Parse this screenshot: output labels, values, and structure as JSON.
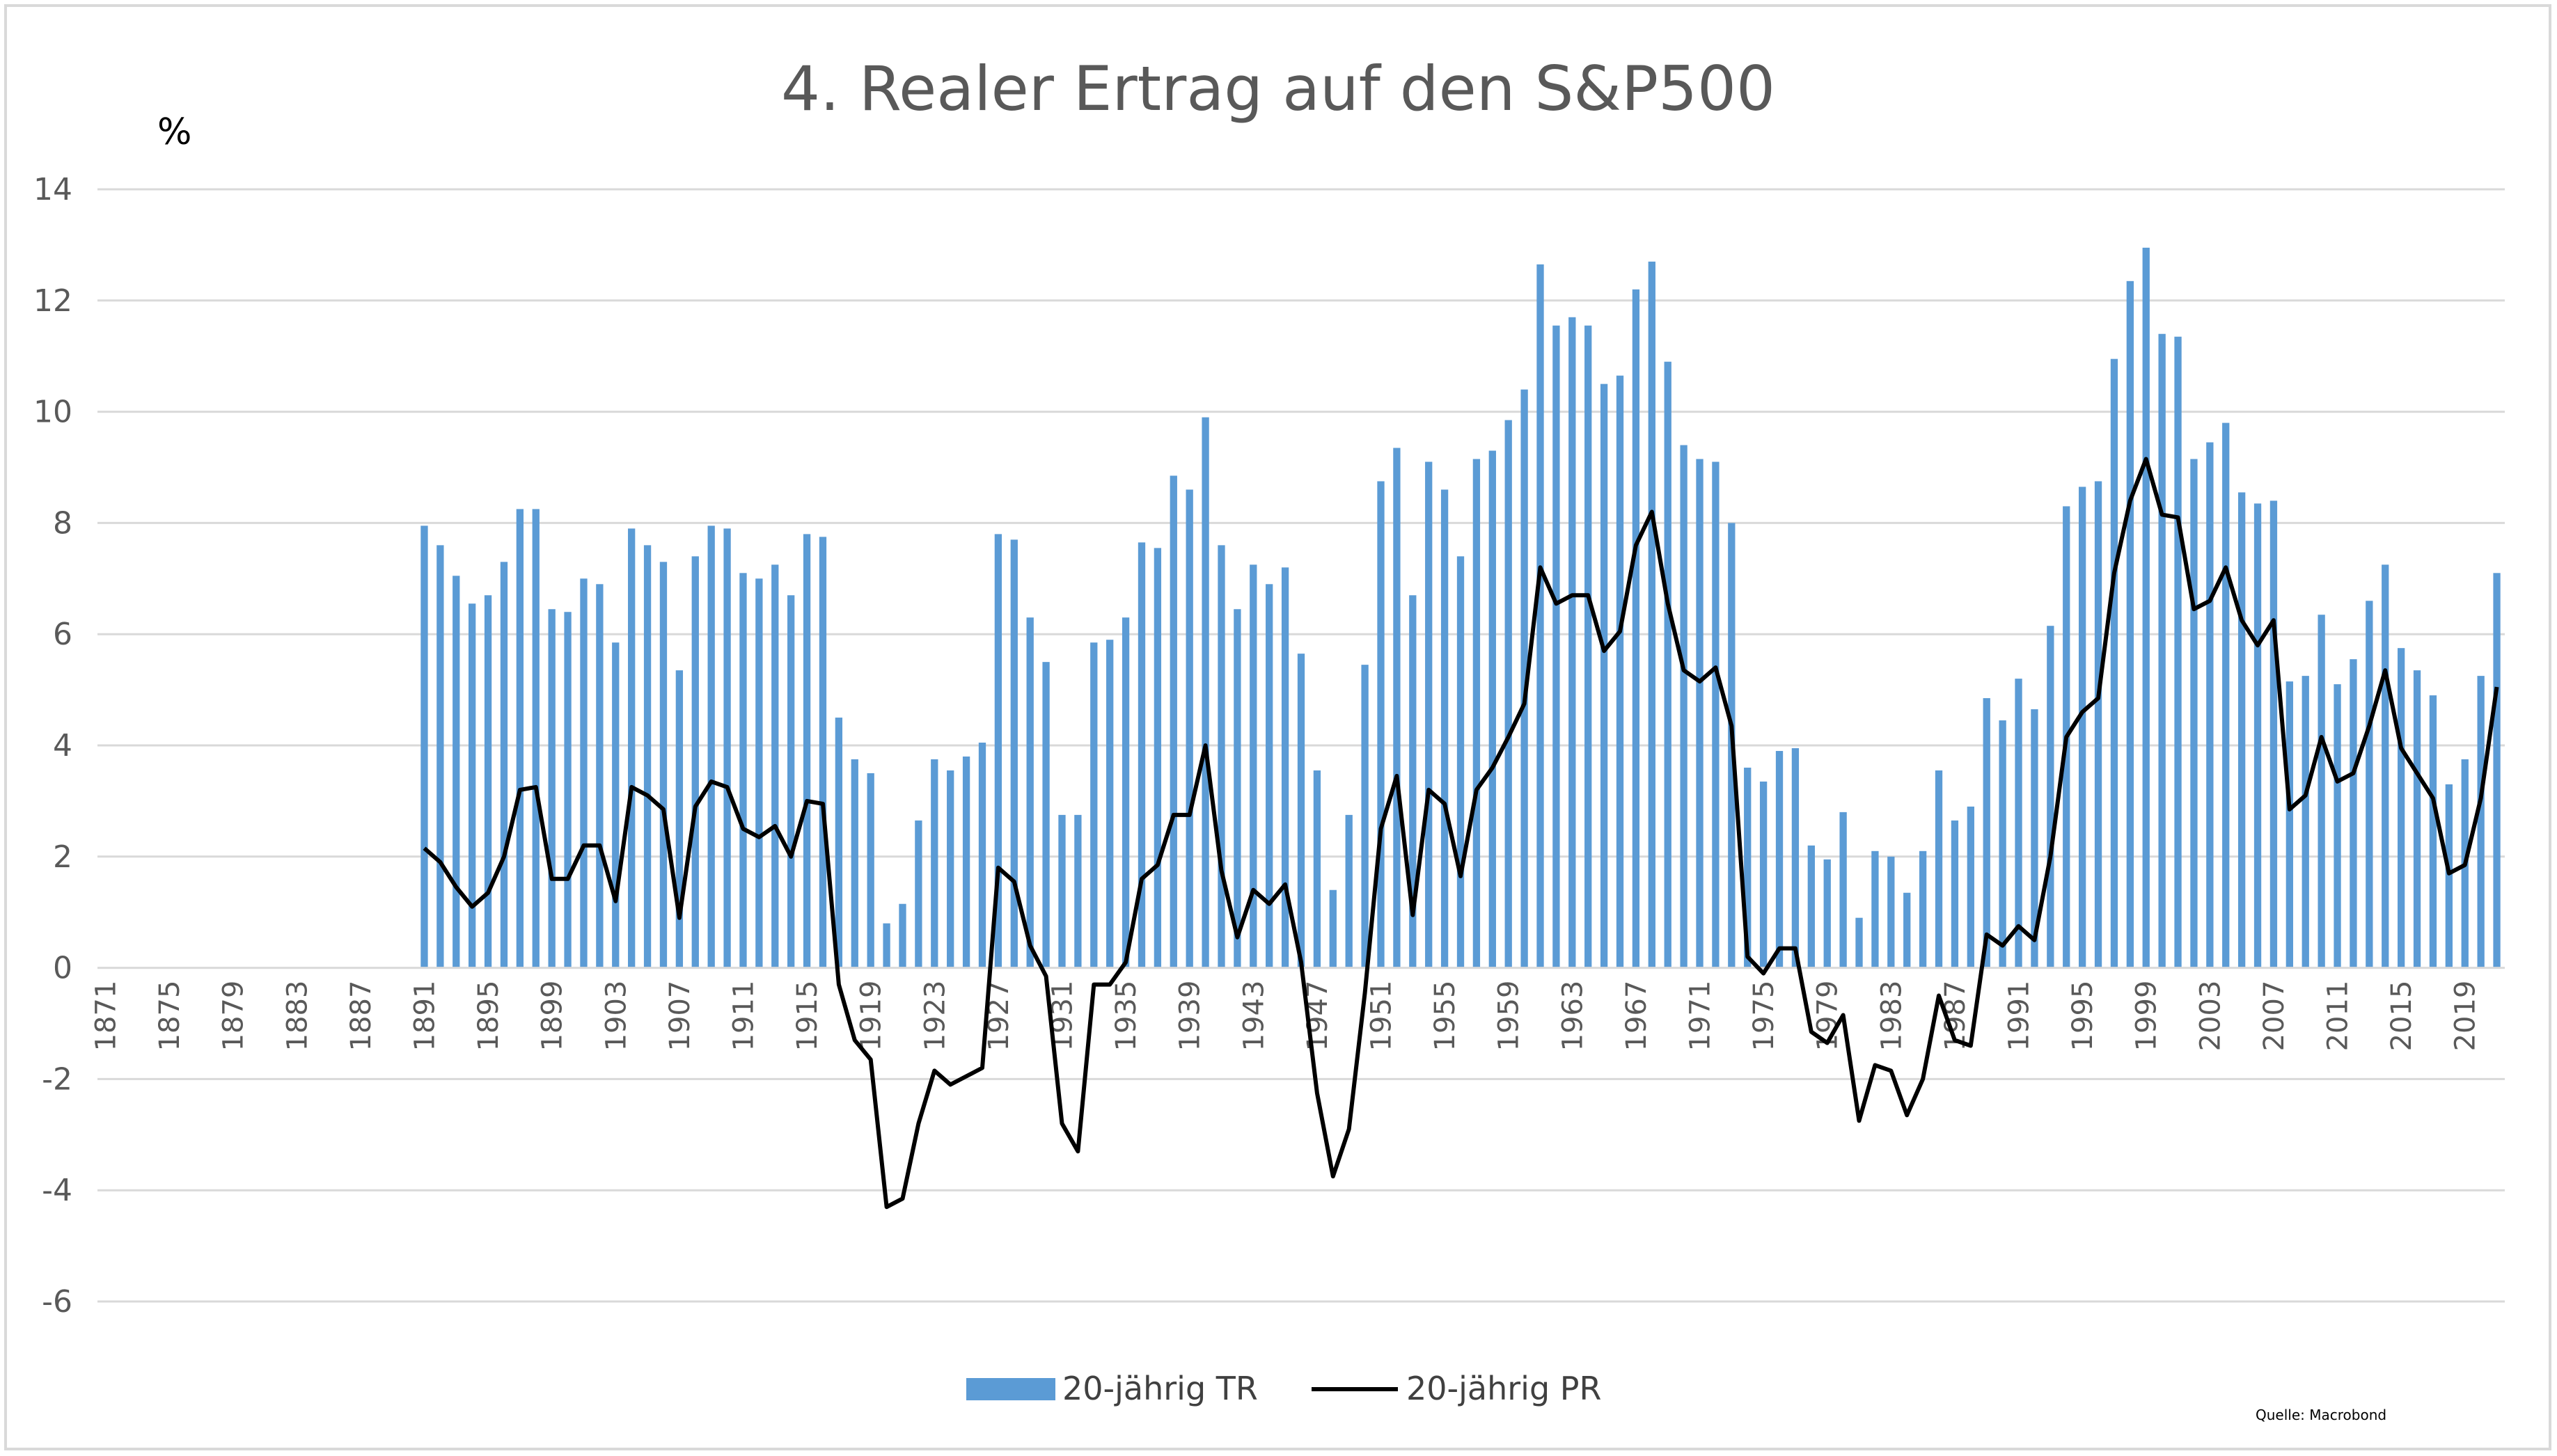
{
  "chart_data": {
    "type": "bar",
    "title": "4. Realer Ertrag auf den S&P500",
    "ylabel": "%",
    "xlabel": "",
    "ylim": [
      -6,
      14
    ],
    "yticks": [
      14,
      12,
      10,
      8,
      6,
      4,
      2,
      0,
      -2,
      -4,
      -6
    ],
    "grid": true,
    "legend_position": "bottom-center",
    "source": "Quelle: Macrobond",
    "x_start": 1871,
    "x_end": 2021,
    "x_tick_labels": [
      "1871",
      "1875",
      "1879",
      "1883",
      "1887",
      "1891",
      "1895",
      "1899",
      "1903",
      "1907",
      "1911",
      "1915",
      "1919",
      "1923",
      "1927",
      "1931",
      "1935",
      "1939",
      "1943",
      "1947",
      "1951",
      "1955",
      "1959",
      "1963",
      "1967",
      "1971",
      "1975",
      "1979",
      "1983",
      "1987",
      "1991",
      "1995",
      "1999",
      "2003",
      "2007",
      "2011",
      "2015",
      "2019"
    ],
    "series": [
      {
        "name": "20-jährig TR",
        "kind": "bar",
        "color": "#5b9bd5",
        "start_year": 1891,
        "values": [
          7.95,
          7.6,
          7.05,
          6.55,
          6.7,
          7.3,
          8.25,
          8.25,
          6.45,
          6.4,
          7.0,
          6.9,
          5.85,
          7.9,
          7.6,
          7.3,
          5.35,
          7.4,
          7.95,
          7.9,
          7.1,
          7.0,
          7.25,
          6.7,
          7.8,
          7.75,
          4.5,
          3.75,
          3.5,
          0.8,
          1.15,
          2.65,
          3.75,
          3.55,
          3.8,
          4.05,
          7.8,
          7.7,
          6.3,
          5.5,
          2.75,
          2.75,
          5.85,
          5.9,
          6.3,
          7.65,
          7.55,
          8.85,
          8.6,
          9.9,
          7.6,
          6.45,
          7.25,
          6.9,
          7.2,
          5.65,
          3.55,
          1.4,
          2.75,
          5.45,
          8.75,
          9.35,
          6.7,
          9.1,
          8.6,
          7.4,
          9.15,
          9.3,
          9.85,
          10.4,
          12.65,
          11.55,
          11.7,
          11.55,
          10.5,
          10.65,
          12.2,
          12.7,
          10.9,
          9.4,
          9.15,
          9.1,
          8.0,
          3.6,
          3.35,
          3.9,
          3.95,
          2.2,
          1.95,
          2.8,
          0.9,
          2.1,
          2.0,
          1.35,
          2.1,
          3.55,
          2.65,
          2.9,
          4.85,
          4.45,
          5.2,
          4.65,
          6.15,
          8.3,
          8.65,
          8.75,
          10.95,
          12.35,
          12.95,
          11.4,
          11.35,
          9.15,
          9.45,
          9.8,
          8.55,
          8.35,
          8.4,
          5.15,
          5.25,
          6.35,
          5.1,
          5.55,
          6.6,
          7.25,
          5.75,
          5.35,
          4.9,
          3.3,
          3.75,
          5.25,
          7.1
        ]
      },
      {
        "name": "20-jährig PR",
        "kind": "line",
        "color": "#000000",
        "start_year": 1891,
        "values": [
          2.15,
          1.9,
          1.45,
          1.1,
          1.35,
          2.0,
          3.2,
          3.25,
          1.6,
          1.6,
          2.2,
          2.2,
          1.2,
          3.25,
          3.1,
          2.85,
          0.9,
          2.9,
          3.35,
          3.25,
          2.5,
          2.35,
          2.55,
          2.0,
          3.0,
          2.95,
          -0.3,
          -1.3,
          -1.65,
          -4.3,
          -4.15,
          -2.8,
          -1.85,
          -2.1,
          -1.95,
          -1.8,
          1.8,
          1.55,
          0.4,
          -0.15,
          -2.8,
          -3.3,
          -0.3,
          -0.3,
          0.1,
          1.6,
          1.85,
          2.75,
          2.75,
          4.0,
          1.75,
          0.55,
          1.4,
          1.15,
          1.5,
          0.1,
          -2.25,
          -3.75,
          -2.9,
          -0.45,
          2.5,
          3.45,
          0.95,
          3.2,
          2.95,
          1.65,
          3.2,
          3.6,
          4.15,
          4.75,
          7.2,
          6.55,
          6.7,
          6.7,
          5.7,
          6.05,
          7.6,
          8.2,
          6.55,
          5.35,
          5.15,
          5.4,
          4.35,
          0.2,
          -0.1,
          0.35,
          0.35,
          -1.15,
          -1.35,
          -0.85,
          -2.75,
          -1.75,
          -1.85,
          -2.65,
          -2.0,
          -0.5,
          -1.3,
          -1.4,
          0.6,
          0.4,
          0.75,
          0.5,
          2.0,
          4.15,
          4.6,
          4.85,
          7.1,
          8.4,
          9.15,
          8.15,
          8.1,
          6.45,
          6.6,
          7.2,
          6.25,
          5.8,
          6.25,
          2.85,
          3.1,
          4.15,
          3.35,
          3.5,
          4.35,
          5.35,
          3.95,
          3.5,
          3.05,
          1.7,
          1.85,
          3.05,
          5.05
        ]
      }
    ]
  }
}
